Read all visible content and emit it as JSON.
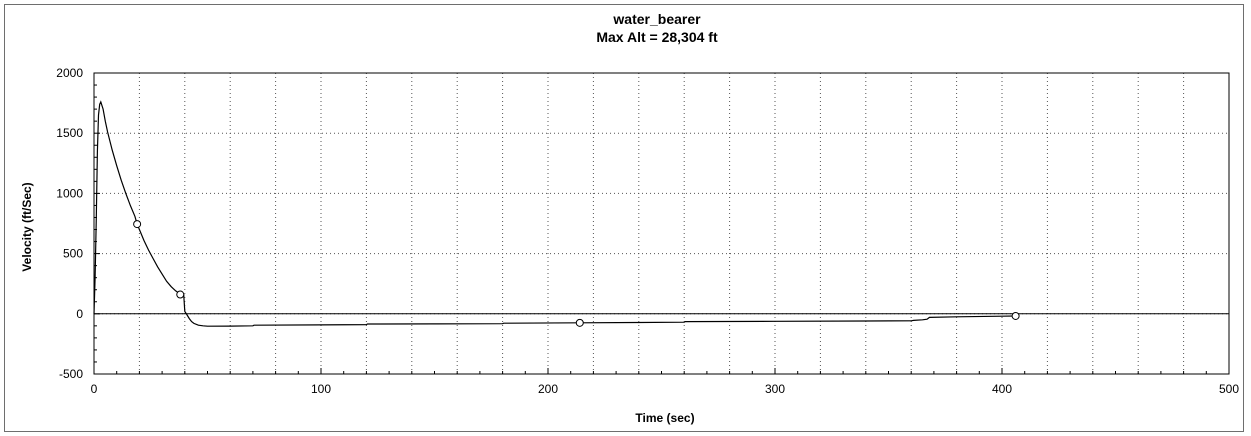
{
  "chart_data": {
    "type": "line",
    "title": "water_bearer",
    "subtitle": "Max Alt = 28,304 ft",
    "xlabel": "Time (sec)",
    "ylabel": "Velocity (ft/Sec)",
    "xlim": [
      0,
      500
    ],
    "ylim": [
      -500,
      2000
    ],
    "xticks": [
      0,
      100,
      200,
      300,
      400,
      500
    ],
    "yticks": [
      -500,
      0,
      500,
      1000,
      1500,
      2000
    ],
    "grid": true,
    "legend": "none",
    "series": [
      {
        "color": "#000000",
        "x": [
          0,
          0.5,
          1,
          1.5,
          2,
          2.5,
          3,
          4,
          5,
          6,
          8,
          10,
          12,
          14,
          16,
          18,
          19,
          20,
          22,
          24,
          26,
          28,
          30,
          32,
          34,
          36,
          38,
          39,
          39.5,
          40,
          41,
          42,
          43,
          44,
          46,
          48,
          50,
          60,
          70,
          70.5,
          100,
          120,
          120.5,
          150,
          180,
          180.5,
          214,
          240,
          260,
          260.5,
          300,
          340,
          360,
          361,
          365,
          367,
          368,
          380,
          400,
          406
        ],
        "y": [
          0,
          300,
          800,
          1350,
          1650,
          1740,
          1760,
          1700,
          1600,
          1510,
          1360,
          1230,
          1110,
          1000,
          900,
          810,
          745,
          700,
          610,
          530,
          460,
          390,
          330,
          270,
          225,
          190,
          165,
          160,
          160,
          20,
          -10,
          -40,
          -65,
          -80,
          -95,
          -100,
          -103,
          -102,
          -100,
          -95,
          -92,
          -90,
          -85,
          -84,
          -82,
          -78,
          -75,
          -72,
          -70,
          -65,
          -62,
          -60,
          -58,
          -55,
          -50,
          -45,
          -30,
          -25,
          -20,
          -18
        ]
      }
    ],
    "markers": {
      "x": [
        19,
        38,
        214,
        406
      ],
      "y": [
        745,
        160,
        -75,
        -18
      ]
    }
  }
}
